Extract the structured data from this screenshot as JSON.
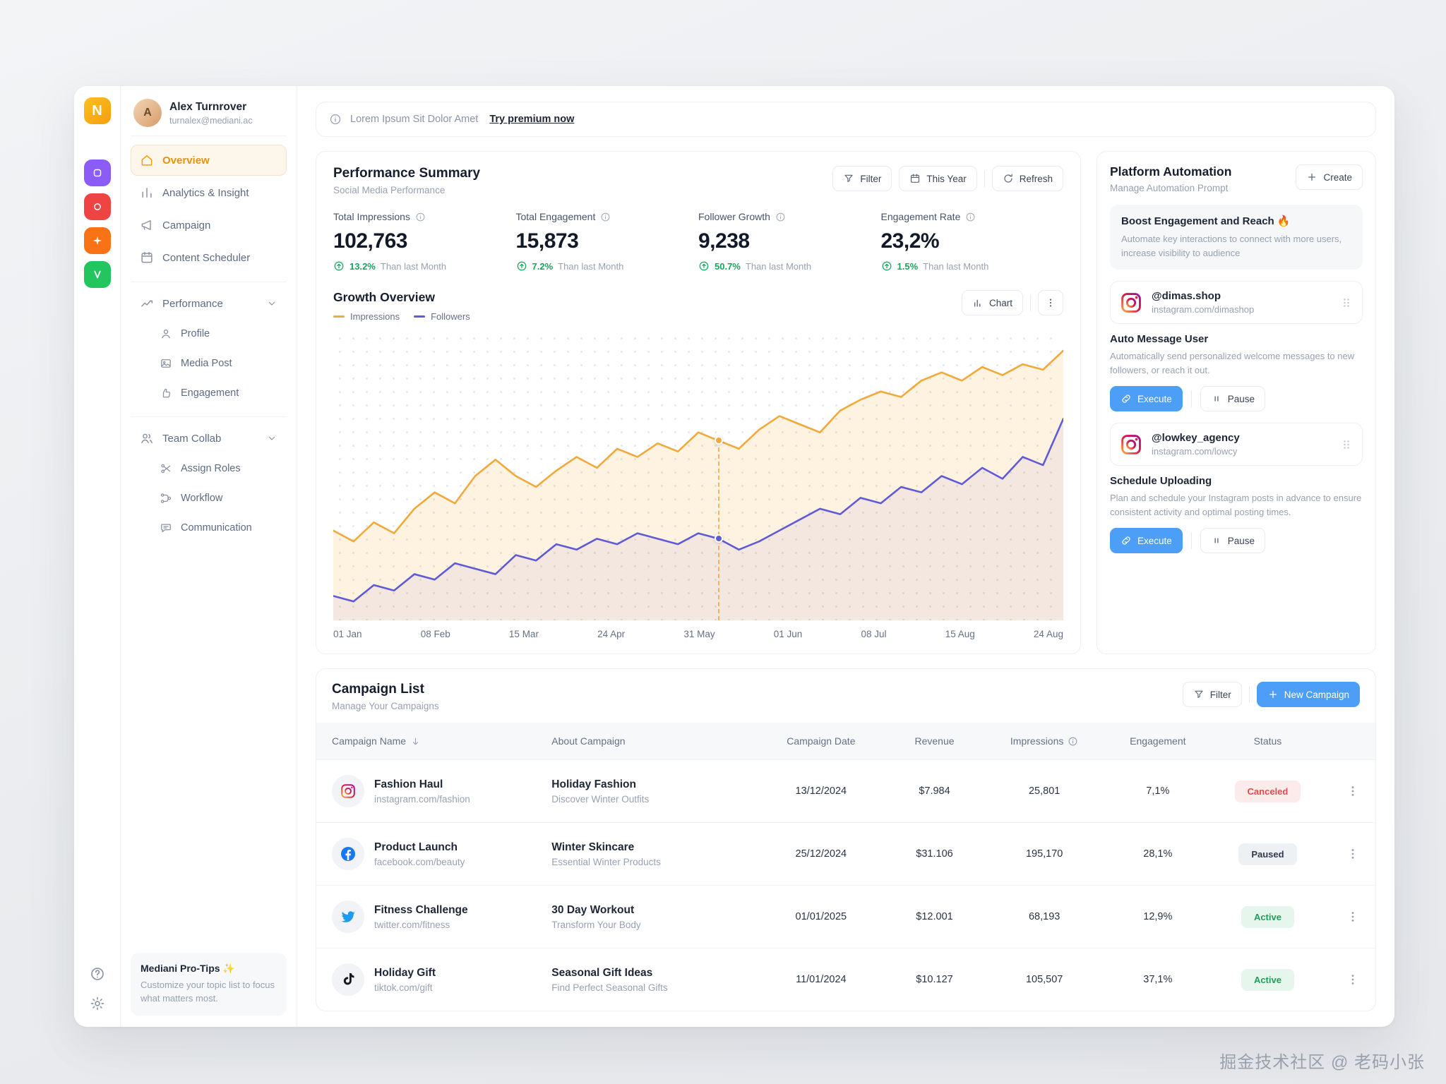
{
  "watermark": "掘金技术社区 @ 老码小张",
  "rail": {
    "logo": "N"
  },
  "sidebar": {
    "user": {
      "name": "Alex Turnrover",
      "email": "turnalex@mediani.ac",
      "initials": "A"
    },
    "items": [
      "Overview",
      "Analytics & Insight",
      "Campaign",
      "Content Scheduler"
    ],
    "sections": [
      {
        "label": "Performance",
        "children": [
          "Profile",
          "Media Post",
          "Engagement"
        ]
      },
      {
        "label": "Team Collab",
        "children": [
          "Assign Roles",
          "Workflow",
          "Communication"
        ]
      }
    ],
    "protips": {
      "title": "Mediani Pro-Tips ✨",
      "body": "Customize your topic list to focus what matters most."
    }
  },
  "banner": {
    "text": "Lorem Ipsum Sit Dolor Amet",
    "link": "Try premium now"
  },
  "performance": {
    "title": "Performance Summary",
    "subtitle": "Social Media Performance",
    "buttons": {
      "filter": "Filter",
      "this_year": "This Year",
      "refresh": "Refresh"
    },
    "stats": [
      {
        "label": "Total Impressions",
        "value": "102,763",
        "delta": "13.2%",
        "suffix": "Than last Month"
      },
      {
        "label": "Total Engagement",
        "value": "15,873",
        "delta": "7.2%",
        "suffix": "Than last Month"
      },
      {
        "label": "Follower Growth",
        "value": "9,238",
        "delta": "50.7%",
        "suffix": "Than last Month"
      },
      {
        "label": "Engagement Rate",
        "value": "23,2%",
        "delta": "1.5%",
        "suffix": "Than last Month"
      }
    ]
  },
  "growth": {
    "title": "Growth Overview",
    "chart_button": "Chart"
  },
  "chart_data": {
    "type": "line",
    "title": "Growth Overview",
    "x_labels": [
      "01 Jan",
      "08 Feb",
      "15 Mar",
      "24 Apr",
      "31 May",
      "01 Jun",
      "08 Jul",
      "15 Aug",
      "24 Aug"
    ],
    "ylim": [
      0,
      100
    ],
    "grid": "dotted",
    "legend": [
      "Impressions",
      "Followers"
    ],
    "legend_position": "top-left",
    "marker_index": 19,
    "series": [
      {
        "name": "Impressions",
        "color": "#F2A93B",
        "fill": "rgba(246,178,60,0.16)",
        "values": [
          30,
          26,
          33,
          29,
          38,
          44,
          40,
          50,
          56,
          50,
          46,
          52,
          57,
          53,
          60,
          57,
          62,
          59,
          66,
          63,
          60,
          67,
          72,
          69,
          66,
          74,
          78,
          81,
          79,
          85,
          88,
          85,
          90,
          87,
          91,
          89,
          96
        ]
      },
      {
        "name": "Followers",
        "color": "#5F5BD7",
        "fill": "rgba(95,91,215,0.07)",
        "values": [
          6,
          4,
          10,
          8,
          14,
          12,
          18,
          16,
          14,
          21,
          19,
          25,
          23,
          27,
          25,
          29,
          27,
          25,
          29,
          27,
          23,
          26,
          30,
          34,
          38,
          36,
          42,
          40,
          46,
          44,
          50,
          47,
          53,
          49,
          57,
          54,
          71
        ]
      }
    ]
  },
  "automation": {
    "title": "Platform Automation",
    "subtitle": "Manage Automation Prompt",
    "create": "Create",
    "highlight": {
      "title": "Boost Engagement and Reach 🔥",
      "body": "Automate key interactions to connect with more users, increase visibility to audience"
    },
    "items": [
      {
        "handle": "@dimas.shop",
        "url": "instagram.com/dimashop",
        "task": "Auto Message User",
        "desc": "Automatically send personalized welcome messages to new followers, or reach it out.",
        "execute": "Execute",
        "pause": "Pause"
      },
      {
        "handle": "@lowkey_agency",
        "url": "instagram.com/lowcy",
        "task": "Schedule Uploading",
        "desc": "Plan and schedule your Instagram posts in advance to ensure consistent activity and optimal posting times.",
        "execute": "Execute",
        "pause": "Pause"
      }
    ]
  },
  "campaigns": {
    "title": "Campaign List",
    "subtitle": "Manage Your Campaigns",
    "filter": "Filter",
    "new_campaign": "New Campaign",
    "columns": [
      "Campaign Name",
      "About Campaign",
      "Campaign Date",
      "Revenue",
      "Impressions",
      "Engagement",
      "Status"
    ],
    "rows": [
      {
        "platform": "instagram",
        "name": "Fashion Haul",
        "link": "instagram.com/fashion",
        "about": "Holiday Fashion",
        "about_sub": "Discover Winter Outfits",
        "date": "13/12/2024",
        "revenue": "$7.984",
        "impressions": "25,801",
        "engagement": "7,1%",
        "status": "Canceled"
      },
      {
        "platform": "facebook",
        "name": "Product Launch",
        "link": "facebook.com/beauty",
        "about": "Winter Skincare",
        "about_sub": "Essential Winter Products",
        "date": "25/12/2024",
        "revenue": "$31.106",
        "impressions": "195,170",
        "engagement": "28,1%",
        "status": "Paused"
      },
      {
        "platform": "twitter",
        "name": "Fitness Challenge",
        "link": "twitter.com/fitness",
        "about": "30 Day Workout",
        "about_sub": "Transform Your Body",
        "date": "01/01/2025",
        "revenue": "$12.001",
        "impressions": "68,193",
        "engagement": "12,9%",
        "status": "Active"
      },
      {
        "platform": "tiktok",
        "name": "Holiday Gift",
        "link": "tiktok.com/gift",
        "about": "Seasonal Gift Ideas",
        "about_sub": "Find Perfect Seasonal Gifts",
        "date": "11/01/2024",
        "revenue": "$10.127",
        "impressions": "105,507",
        "engagement": "37,1%",
        "status": "Active"
      }
    ]
  },
  "colors": {
    "accent_blue": "#4D9EF6",
    "active_orange": "#E8930C",
    "green": "#18A45B",
    "red": "#E5484D",
    "chart_orange": "#F2A93B",
    "chart_purple": "#5F5BD7"
  }
}
